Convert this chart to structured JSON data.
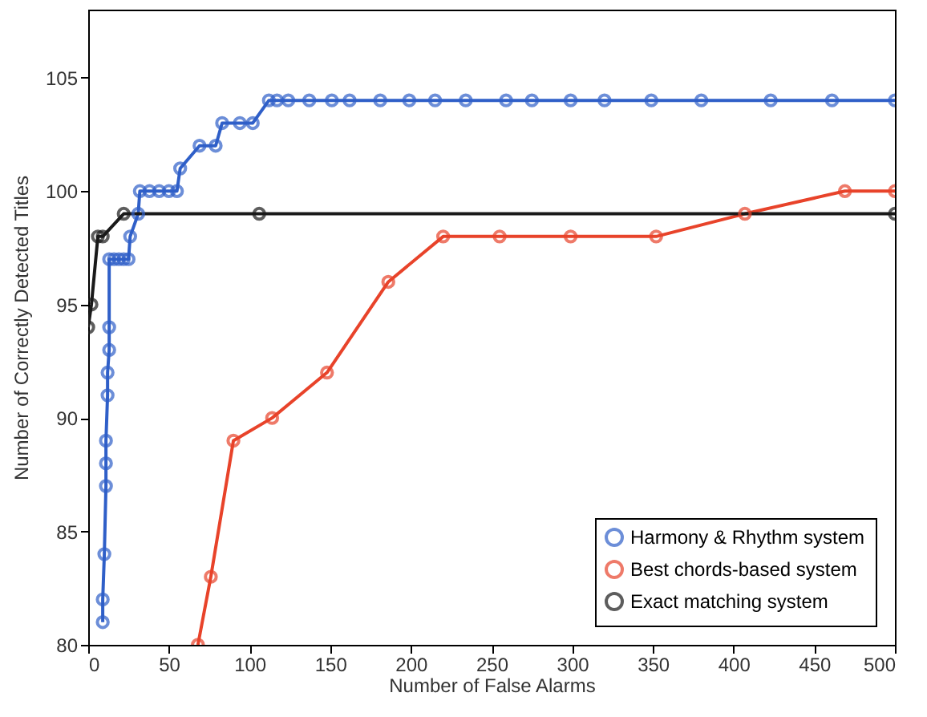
{
  "chart_data": {
    "type": "line",
    "xlabel": "Number of False Alarms",
    "ylabel": "Number of Correctly Detected Titles",
    "xlim": [
      0,
      500
    ],
    "ylim": [
      80,
      108
    ],
    "xticks": [
      0,
      50,
      100,
      150,
      200,
      250,
      300,
      350,
      400,
      450,
      500
    ],
    "yticks": [
      80,
      85,
      90,
      95,
      100,
      105
    ],
    "grid": false,
    "legend": "bottom right",
    "marker": "circle",
    "line_style": "solid",
    "series": [
      {
        "name": "Harmony & Rhythm system",
        "color": "#2f5fc8",
        "x": [
          9,
          9,
          10,
          11,
          11,
          11,
          12,
          12,
          13,
          13,
          13,
          16,
          19,
          22,
          25,
          26,
          31,
          32,
          38,
          44,
          50,
          55,
          57,
          69,
          79,
          83,
          94,
          102,
          112,
          117,
          124,
          137,
          151,
          162,
          181,
          199,
          215,
          234,
          259,
          275,
          299,
          320,
          349,
          380,
          423,
          461,
          500
        ],
        "values": [
          81,
          82,
          84,
          87,
          88,
          89,
          91,
          92,
          93,
          94,
          97,
          97,
          97,
          97,
          97,
          98,
          99,
          100,
          100,
          100,
          100,
          100,
          101,
          102,
          102,
          103,
          103,
          103,
          104,
          104,
          104,
          104,
          104,
          104,
          104,
          104,
          104,
          104,
          104,
          104,
          104,
          104,
          104,
          104,
          104,
          104,
          104
        ]
      },
      {
        "name": "Best chords-based system",
        "color": "#e8432a",
        "x": [
          68,
          76,
          90,
          114,
          148,
          186,
          220,
          255,
          299,
          352,
          407,
          469,
          500
        ],
        "values": [
          80,
          83,
          89,
          90,
          92,
          96,
          98,
          98,
          98,
          98,
          99,
          100,
          100
        ]
      },
      {
        "name": "Exact matching system",
        "color": "#1a1a1a",
        "x": [
          0,
          2,
          6,
          9,
          22,
          106,
          500
        ],
        "values": [
          94,
          95,
          98,
          98,
          99,
          99,
          99
        ]
      }
    ]
  }
}
